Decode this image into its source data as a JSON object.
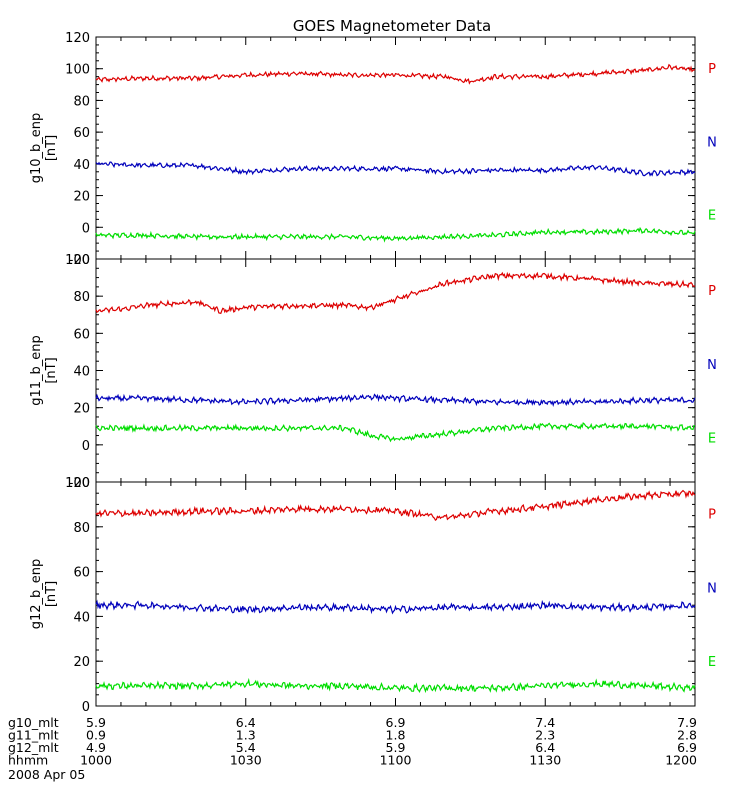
{
  "title": "GOES Magnetometer Data",
  "colors": {
    "P": "#dd0000",
    "N": "#0000bb",
    "E": "#00dd00",
    "axis": "#000000"
  },
  "chart_data": [
    {
      "type": "line",
      "ylabel": "g10_b_enp",
      "yunit": "[nT]",
      "ylim": [
        -20,
        120
      ],
      "yticks": [
        -20,
        0,
        20,
        40,
        60,
        80,
        100,
        120
      ],
      "xlim": [
        0,
        120
      ],
      "series": [
        {
          "name": "P",
          "color": "P",
          "x": [
            0,
            10,
            20,
            30,
            40,
            50,
            60,
            70,
            75,
            80,
            90,
            100,
            110,
            115,
            120
          ],
          "values": [
            93,
            94,
            94,
            96,
            97,
            96,
            96,
            95,
            92,
            95,
            95,
            97,
            99,
            101,
            99
          ]
        },
        {
          "name": "N",
          "color": "N",
          "x": [
            0,
            10,
            20,
            30,
            40,
            50,
            60,
            70,
            80,
            90,
            100,
            110,
            120
          ],
          "values": [
            40,
            39,
            39,
            35,
            37,
            37,
            37,
            35,
            36,
            36,
            38,
            34,
            35
          ]
        },
        {
          "name": "E",
          "color": "E",
          "x": [
            0,
            10,
            20,
            30,
            40,
            50,
            60,
            70,
            80,
            90,
            100,
            110,
            120
          ],
          "values": [
            -5,
            -5,
            -6,
            -6,
            -6,
            -6,
            -7,
            -6,
            -5,
            -3,
            -3,
            -2,
            -4
          ]
        }
      ]
    },
    {
      "type": "line",
      "ylabel": "g11_b_enp",
      "yunit": "[nT]",
      "ylim": [
        -20,
        100
      ],
      "yticks": [
        -20,
        0,
        20,
        40,
        60,
        80,
        100
      ],
      "xlim": [
        0,
        120
      ],
      "series": [
        {
          "name": "P",
          "color": "P",
          "x": [
            0,
            5,
            10,
            20,
            25,
            30,
            40,
            50,
            55,
            60,
            70,
            80,
            90,
            100,
            110,
            120
          ],
          "values": [
            72,
            73,
            75,
            77,
            72,
            74,
            75,
            75,
            74,
            78,
            87,
            91,
            91,
            89,
            87,
            86
          ]
        },
        {
          "name": "N",
          "color": "N",
          "x": [
            0,
            10,
            20,
            30,
            40,
            50,
            55,
            60,
            70,
            80,
            90,
            100,
            110,
            120
          ],
          "values": [
            25,
            25,
            24,
            23,
            24,
            25,
            26,
            25,
            24,
            23,
            23,
            23,
            24,
            24
          ]
        },
        {
          "name": "E",
          "color": "E",
          "x": [
            0,
            10,
            20,
            30,
            40,
            50,
            55,
            60,
            70,
            80,
            90,
            100,
            110,
            120
          ],
          "values": [
            9,
            9,
            9,
            9,
            9,
            9,
            5,
            3,
            6,
            9,
            10,
            10,
            10,
            9
          ]
        }
      ]
    },
    {
      "type": "line",
      "ylabel": "g12_b_enp",
      "yunit": "[nT]",
      "ylim": [
        0,
        100
      ],
      "yticks": [
        0,
        20,
        40,
        60,
        80,
        100
      ],
      "xlim": [
        0,
        120
      ],
      "series": [
        {
          "name": "P",
          "color": "P",
          "x": [
            0,
            10,
            20,
            30,
            40,
            50,
            60,
            70,
            80,
            90,
            100,
            110,
            120
          ],
          "values": [
            86,
            86,
            87,
            87,
            88,
            88,
            87,
            84,
            87,
            89,
            92,
            94,
            95
          ]
        },
        {
          "name": "N",
          "color": "N",
          "x": [
            0,
            10,
            20,
            30,
            40,
            50,
            60,
            70,
            80,
            90,
            100,
            110,
            120
          ],
          "values": [
            45,
            45,
            44,
            43,
            44,
            44,
            43,
            44,
            44,
            45,
            44,
            44,
            45
          ]
        },
        {
          "name": "E",
          "color": "E",
          "x": [
            0,
            10,
            20,
            30,
            40,
            50,
            60,
            70,
            80,
            90,
            100,
            110,
            120
          ],
          "values": [
            9,
            9,
            9,
            10,
            9,
            9,
            8,
            8,
            8,
            9,
            10,
            9,
            8
          ]
        }
      ]
    }
  ],
  "xaxis": {
    "rows": [
      {
        "label": "g10_mlt",
        "values": [
          "5.9",
          "6.4",
          "6.9",
          "7.4",
          "7.9"
        ]
      },
      {
        "label": "g11_mlt",
        "values": [
          "0.9",
          "1.3",
          "1.8",
          "2.3",
          "2.8"
        ]
      },
      {
        "label": "g12_mlt",
        "values": [
          "4.9",
          "5.4",
          "5.9",
          "6.4",
          "6.9"
        ]
      },
      {
        "label": "hhmm",
        "values": [
          "1000",
          "1030",
          "1100",
          "1130",
          "1200"
        ]
      }
    ],
    "date": "2008 Apr 05"
  }
}
